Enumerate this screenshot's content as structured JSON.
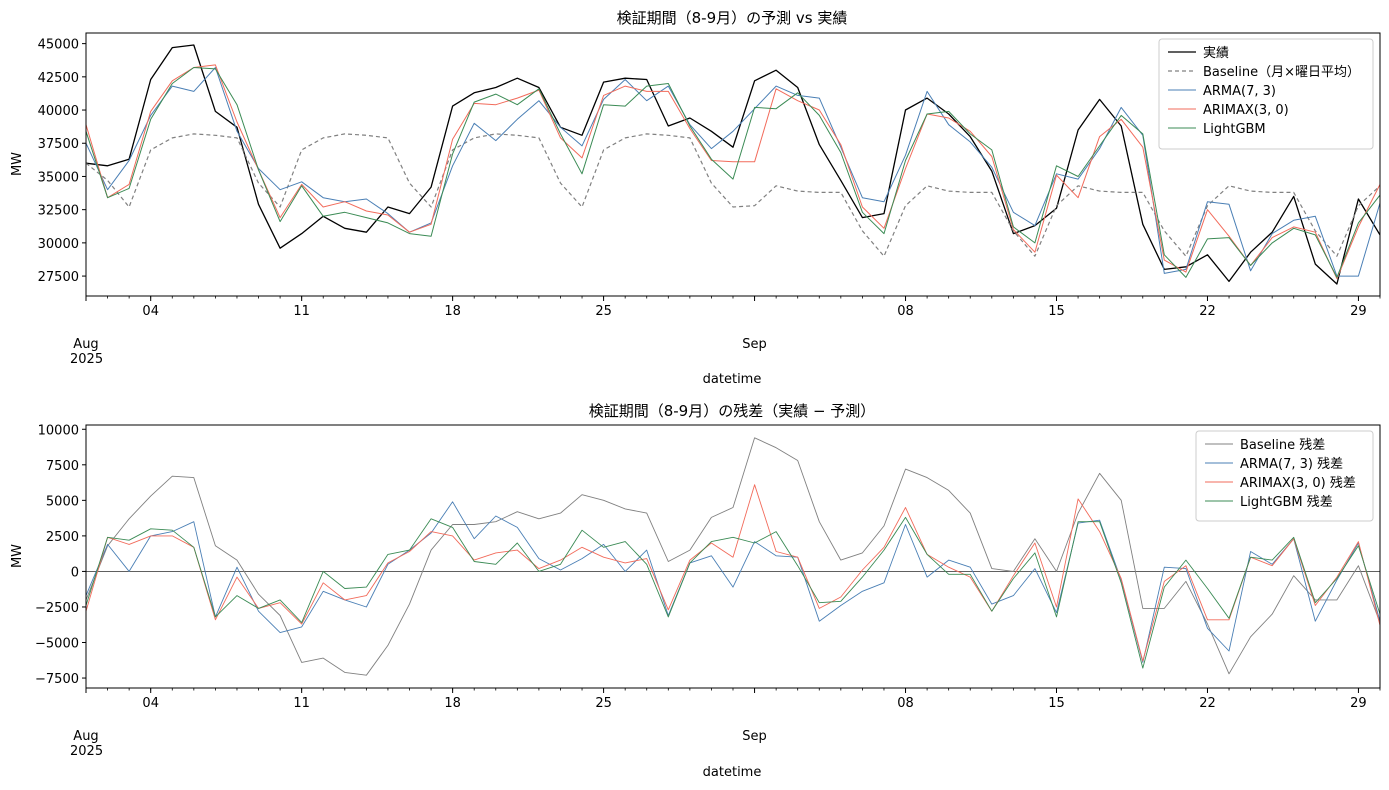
{
  "chart_data": [
    {
      "type": "line",
      "title": "検証期間（8-9月）の予測 vs 実績",
      "xlabel": "datetime",
      "ylabel": "MW",
      "xlim": [
        "2025-08-01",
        "2025-09-30"
      ],
      "ylim": [
        26000,
        45800
      ],
      "yticks": [
        27500,
        30000,
        32500,
        35000,
        37500,
        40000,
        42500,
        45000
      ],
      "ytick_labels": [
        "27500",
        "30000",
        "32500",
        "35000",
        "37500",
        "40000",
        "42500",
        "45000"
      ],
      "xtick_labels": [
        {
          "date": "2025-08-04",
          "label": "04"
        },
        {
          "date": "2025-08-11",
          "label": "11"
        },
        {
          "date": "2025-08-18",
          "label": "18"
        },
        {
          "date": "2025-08-25",
          "label": "25"
        },
        {
          "date": "2025-09-08",
          "label": "08"
        },
        {
          "date": "2025-09-15",
          "label": "15"
        },
        {
          "date": "2025-09-22",
          "label": "22"
        },
        {
          "date": "2025-09-29",
          "label": "29"
        }
      ],
      "month_labels": [
        {
          "date": "2025-08-01",
          "label": "Aug",
          "year": "2025"
        },
        {
          "date": "2025-09-01",
          "label": "Sep",
          "year": ""
        }
      ],
      "legend_position": "top-right",
      "grid": false,
      "x": [
        "2025-08-01",
        "2025-08-02",
        "2025-08-03",
        "2025-08-04",
        "2025-08-05",
        "2025-08-06",
        "2025-08-07",
        "2025-08-08",
        "2025-08-09",
        "2025-08-10",
        "2025-08-11",
        "2025-08-12",
        "2025-08-13",
        "2025-08-14",
        "2025-08-15",
        "2025-08-16",
        "2025-08-17",
        "2025-08-18",
        "2025-08-19",
        "2025-08-20",
        "2025-08-21",
        "2025-08-22",
        "2025-08-23",
        "2025-08-24",
        "2025-08-25",
        "2025-08-26",
        "2025-08-27",
        "2025-08-28",
        "2025-08-29",
        "2025-08-30",
        "2025-08-31",
        "2025-09-01",
        "2025-09-02",
        "2025-09-03",
        "2025-09-04",
        "2025-09-05",
        "2025-09-06",
        "2025-09-07",
        "2025-09-08",
        "2025-09-09",
        "2025-09-10",
        "2025-09-11",
        "2025-09-12",
        "2025-09-13",
        "2025-09-14",
        "2025-09-15",
        "2025-09-16",
        "2025-09-17",
        "2025-09-18",
        "2025-09-19",
        "2025-09-20",
        "2025-09-21",
        "2025-09-22",
        "2025-09-23",
        "2025-09-24",
        "2025-09-25",
        "2025-09-26",
        "2025-09-27",
        "2025-09-28",
        "2025-09-29",
        "2025-09-30"
      ],
      "series": [
        {
          "name": "実績",
          "color": "#000000",
          "dash": "solid",
          "width": 1.3,
          "values": [
            36000,
            35800,
            36300,
            42300,
            44700,
            44900,
            39900,
            38700,
            32900,
            29600,
            30700,
            32000,
            31100,
            30800,
            32700,
            32200,
            34200,
            40300,
            41300,
            41700,
            42400,
            41700,
            38700,
            38100,
            42100,
            42400,
            42300,
            38800,
            39400,
            38400,
            37200,
            42200,
            43000,
            41700,
            37400,
            34700,
            31900,
            32200,
            40000,
            40900,
            39700,
            38000,
            35400,
            30700,
            31300,
            32600,
            38500,
            40800,
            38800,
            31400,
            28000,
            28200,
            29100,
            27100,
            29300,
            30800,
            33500,
            28400,
            26900,
            33300,
            30600
          ]
        },
        {
          "name": "Baseline（月×曜日平均）",
          "color": "#808080",
          "dash": "dashed",
          "width": 1.2,
          "values": [
            36000,
            34700,
            32700,
            37000,
            37900,
            38200,
            38100,
            37900,
            34500,
            32700,
            37000,
            37900,
            38200,
            38100,
            37900,
            34500,
            32700,
            37000,
            37900,
            38200,
            38100,
            37900,
            34500,
            32700,
            37000,
            37900,
            38200,
            38100,
            37900,
            34500,
            32700,
            32800,
            34300,
            33900,
            33800,
            33800,
            30900,
            29000,
            32800,
            34300,
            33900,
            33800,
            33800,
            30900,
            29000,
            32800,
            34300,
            33900,
            33800,
            33800,
            30900,
            29000,
            32800,
            34300,
            33900,
            33800,
            33800,
            30900,
            29000,
            32800,
            34300
          ]
        },
        {
          "name": "ARMA(7, 3)",
          "color": "#4a7fb5",
          "dash": "solid",
          "width": 1.0,
          "values": [
            37500,
            34000,
            36200,
            39600,
            41800,
            41400,
            43200,
            38400,
            35600,
            34000,
            34600,
            33400,
            33100,
            33300,
            32200,
            30800,
            31500,
            35800,
            39000,
            37700,
            39300,
            40700,
            38700,
            37300,
            40800,
            42300,
            40700,
            41800,
            38900,
            37100,
            38400,
            40100,
            41800,
            41100,
            40900,
            37200,
            33400,
            33100,
            36600,
            41400,
            38900,
            37600,
            35700,
            32300,
            31300,
            35200,
            34800,
            37100,
            40200,
            38100,
            27700,
            28000,
            33100,
            32900,
            27900,
            30700,
            31700,
            32000,
            27500,
            27500,
            33000
          ]
        },
        {
          "name": "ARIMAX(3, 0)",
          "color": "#f26b5b",
          "dash": "solid",
          "width": 1.0,
          "values": [
            38900,
            33400,
            34400,
            39900,
            42200,
            43200,
            43400,
            39100,
            35500,
            31900,
            34400,
            32700,
            33100,
            32400,
            32100,
            30800,
            31400,
            37800,
            40500,
            40400,
            40900,
            41500,
            37900,
            36400,
            41100,
            41800,
            41400,
            41400,
            38600,
            36200,
            36100,
            36100,
            41600,
            40700,
            40000,
            37400,
            32700,
            31100,
            35600,
            39700,
            39400,
            38400,
            36500,
            31000,
            29300,
            35100,
            33400,
            38000,
            39300,
            37200,
            28700,
            27800,
            32500,
            30500,
            28300,
            30400,
            31200,
            30800,
            27300,
            31200,
            34400
          ]
        },
        {
          "name": "LightGBM",
          "color": "#3b8b55",
          "dash": "solid",
          "width": 1.0,
          "values": [
            38400,
            33400,
            34100,
            39300,
            42000,
            43200,
            43100,
            40400,
            35500,
            31600,
            34300,
            32000,
            32300,
            31900,
            31500,
            30700,
            30500,
            36700,
            40600,
            41200,
            40400,
            41600,
            38200,
            35200,
            40400,
            40300,
            41800,
            42000,
            38800,
            36300,
            34800,
            40200,
            40100,
            41300,
            39600,
            36800,
            32300,
            30700,
            36200,
            39700,
            39900,
            38200,
            37000,
            31200,
            30000,
            35800,
            35000,
            37300,
            39600,
            38200,
            29100,
            27400,
            30300,
            30400,
            28300,
            30000,
            31100,
            30600,
            27400,
            31500,
            33600
          ]
        }
      ]
    },
    {
      "type": "line",
      "title": "検証期間（8-9月）の残差（実績 − 予測）",
      "xlabel": "datetime",
      "ylabel": "MW",
      "xlim": [
        "2025-08-01",
        "2025-09-30"
      ],
      "ylim": [
        -8200,
        10300
      ],
      "yticks": [
        -7500,
        -5000,
        -2500,
        0,
        2500,
        5000,
        7500,
        10000
      ],
      "ytick_labels": [
        "−7500",
        "−5000",
        "−2500",
        "0",
        "2500",
        "5000",
        "7500",
        "10000"
      ],
      "xtick_labels": [
        {
          "date": "2025-08-04",
          "label": "04"
        },
        {
          "date": "2025-08-11",
          "label": "11"
        },
        {
          "date": "2025-08-18",
          "label": "18"
        },
        {
          "date": "2025-08-25",
          "label": "25"
        },
        {
          "date": "2025-09-08",
          "label": "08"
        },
        {
          "date": "2025-09-15",
          "label": "15"
        },
        {
          "date": "2025-09-22",
          "label": "22"
        },
        {
          "date": "2025-09-29",
          "label": "29"
        }
      ],
      "month_labels": [
        {
          "date": "2025-08-01",
          "label": "Aug",
          "year": "2025"
        },
        {
          "date": "2025-09-01",
          "label": "Sep",
          "year": ""
        }
      ],
      "legend_position": "top-right",
      "grid": false,
      "zero_line": true,
      "x": [
        "2025-08-01",
        "2025-08-02",
        "2025-08-03",
        "2025-08-04",
        "2025-08-05",
        "2025-08-06",
        "2025-08-07",
        "2025-08-08",
        "2025-08-09",
        "2025-08-10",
        "2025-08-11",
        "2025-08-12",
        "2025-08-13",
        "2025-08-14",
        "2025-08-15",
        "2025-08-16",
        "2025-08-17",
        "2025-08-18",
        "2025-08-19",
        "2025-08-20",
        "2025-08-21",
        "2025-08-22",
        "2025-08-23",
        "2025-08-24",
        "2025-08-25",
        "2025-08-26",
        "2025-08-27",
        "2025-08-28",
        "2025-08-29",
        "2025-08-30",
        "2025-08-31",
        "2025-09-01",
        "2025-09-02",
        "2025-09-03",
        "2025-09-04",
        "2025-09-05",
        "2025-09-06",
        "2025-09-07",
        "2025-09-08",
        "2025-09-09",
        "2025-09-10",
        "2025-09-11",
        "2025-09-12",
        "2025-09-13",
        "2025-09-14",
        "2025-09-15",
        "2025-09-16",
        "2025-09-17",
        "2025-09-18",
        "2025-09-19",
        "2025-09-20",
        "2025-09-21",
        "2025-09-22",
        "2025-09-23",
        "2025-09-24",
        "2025-09-25",
        "2025-09-26",
        "2025-09-27",
        "2025-09-28",
        "2025-09-29",
        "2025-09-30"
      ],
      "series": [
        {
          "name": "Baseline 残差",
          "color": "#808080",
          "dash": "solid",
          "width": 0.9,
          "values": [
            -2000,
            1800,
            3700,
            5300,
            6700,
            6600,
            1800,
            800,
            -1600,
            -3100,
            -6400,
            -6100,
            -7100,
            -7300,
            -5200,
            -2300,
            1500,
            3300,
            3300,
            3500,
            4200,
            3700,
            4100,
            5400,
            5000,
            4400,
            4100,
            700,
            1500,
            3800,
            4500,
            9400,
            8700,
            7800,
            3500,
            800,
            1300,
            3200,
            7200,
            6600,
            5700,
            4100,
            200,
            0,
            2300,
            0,
            4100,
            6900,
            5000,
            -2600,
            -2600,
            -700,
            -3700,
            -7200,
            -4600,
            -3000,
            -300,
            -2000,
            -2000,
            400,
            -3600
          ]
        },
        {
          "name": "ARMA(7, 3)",
          "legend_label": "ARMA(7, 3) 残差",
          "color": "#4a7fb5",
          "dash": "solid",
          "width": 0.9,
          "values": [
            -1700,
            1900,
            0,
            2500,
            2800,
            3500,
            -3200,
            300,
            -2800,
            -4300,
            -3900,
            -1400,
            -2000,
            -2500,
            500,
            1500,
            2700,
            4900,
            2300,
            3900,
            3100,
            900,
            100,
            900,
            1900,
            0,
            1500,
            -3100,
            600,
            1100,
            -1100,
            2100,
            1100,
            1000,
            -3500,
            -2400,
            -1400,
            -800,
            3300,
            -400,
            800,
            300,
            -2300,
            -1700,
            200,
            -2900,
            3400,
            3600,
            -600,
            -6400,
            300,
            200,
            -4000,
            -5600,
            1400,
            500,
            2300,
            -3500,
            -600,
            2000,
            -3500
          ]
        },
        {
          "name": "ARIMAX(3, 0)",
          "legend_label": "ARIMAX(3, 0) 残差",
          "color": "#f26b5b",
          "dash": "solid",
          "width": 0.9,
          "values": [
            -2800,
            2400,
            1900,
            2500,
            2500,
            1700,
            -3400,
            -400,
            -2600,
            -2200,
            -3700,
            -800,
            -2000,
            -1700,
            600,
            1400,
            2800,
            2500,
            800,
            1300,
            1500,
            200,
            800,
            1700,
            1000,
            600,
            900,
            -2700,
            800,
            2000,
            1000,
            6100,
            1400,
            1000,
            -2600,
            -1800,
            100,
            1700,
            4500,
            1200,
            300,
            -400,
            -2800,
            -300,
            2000,
            -2500,
            5100,
            2800,
            -500,
            -6300,
            -700,
            400,
            -3400,
            -3400,
            1000,
            400,
            2300,
            -2400,
            -400,
            2100,
            -3800
          ]
        },
        {
          "name": "LightGBM",
          "legend_label": "LightGBM 残差",
          "color": "#3b8b55",
          "dash": "solid",
          "width": 0.9,
          "values": [
            -2400,
            2400,
            2200,
            3000,
            2900,
            1700,
            -3200,
            -1700,
            -2600,
            -2000,
            -3600,
            0,
            -1200,
            -1100,
            1200,
            1500,
            3700,
            3100,
            700,
            500,
            2000,
            0,
            500,
            2900,
            1700,
            2100,
            500,
            -3200,
            600,
            2100,
            2400,
            2000,
            2800,
            400,
            -2200,
            -2100,
            -400,
            1500,
            3800,
            1200,
            -200,
            -200,
            -2800,
            -500,
            1300,
            -3200,
            3500,
            3500,
            -800,
            -6800,
            -1100,
            800,
            -1200,
            -3300,
            1000,
            800,
            2400,
            -2200,
            -500,
            1800,
            -3000
          ]
        }
      ]
    }
  ]
}
